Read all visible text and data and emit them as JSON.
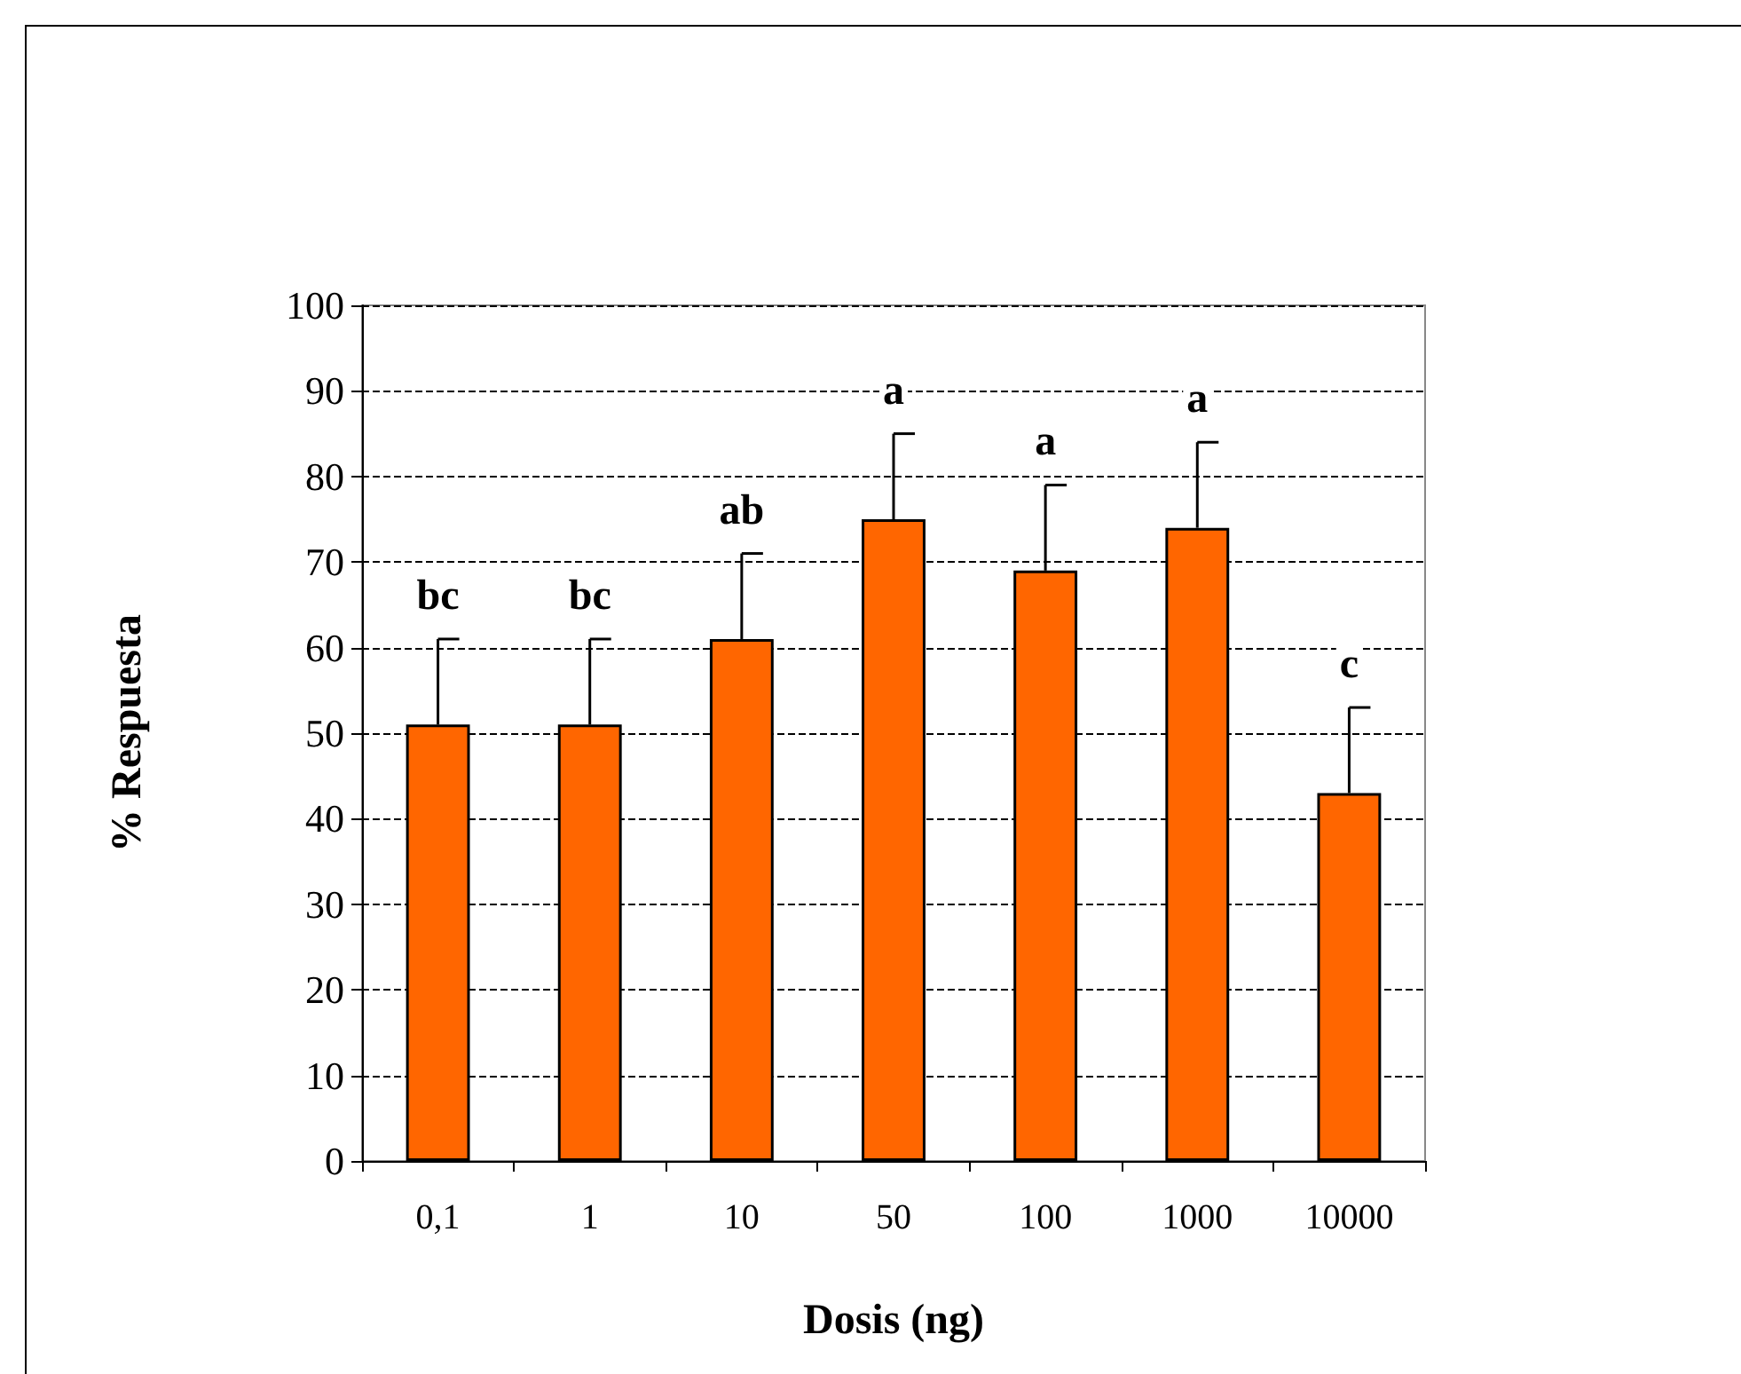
{
  "chart_data": {
    "type": "bar",
    "xlabel": "Dosis (ng)",
    "ylabel": "% Respuesta",
    "categories": [
      "0,1",
      "1",
      "10",
      "50",
      "100",
      "1000",
      "10000"
    ],
    "values": [
      51,
      51,
      61,
      75,
      69,
      74,
      43
    ],
    "errors": [
      10,
      10,
      10,
      10,
      10,
      10,
      10
    ],
    "color": "#ff6600",
    "ylim": [
      0,
      100
    ],
    "yticks": [
      0,
      10,
      20,
      30,
      40,
      50,
      60,
      70,
      80,
      90,
      100
    ],
    "grid": "y",
    "annotations": [
      {
        "text": "bc",
        "x": "0,1",
        "y": 61
      },
      {
        "text": "bc",
        "x": "1",
        "y": 61
      },
      {
        "text": "ab",
        "x": "10",
        "y": 71
      },
      {
        "text": "a",
        "x": "50",
        "y": 85
      },
      {
        "text": "a",
        "x": "100",
        "y": 79
      },
      {
        "text": "a",
        "x": "1000",
        "y": 84
      },
      {
        "text": "c",
        "x": "10000",
        "y": 53
      }
    ]
  }
}
